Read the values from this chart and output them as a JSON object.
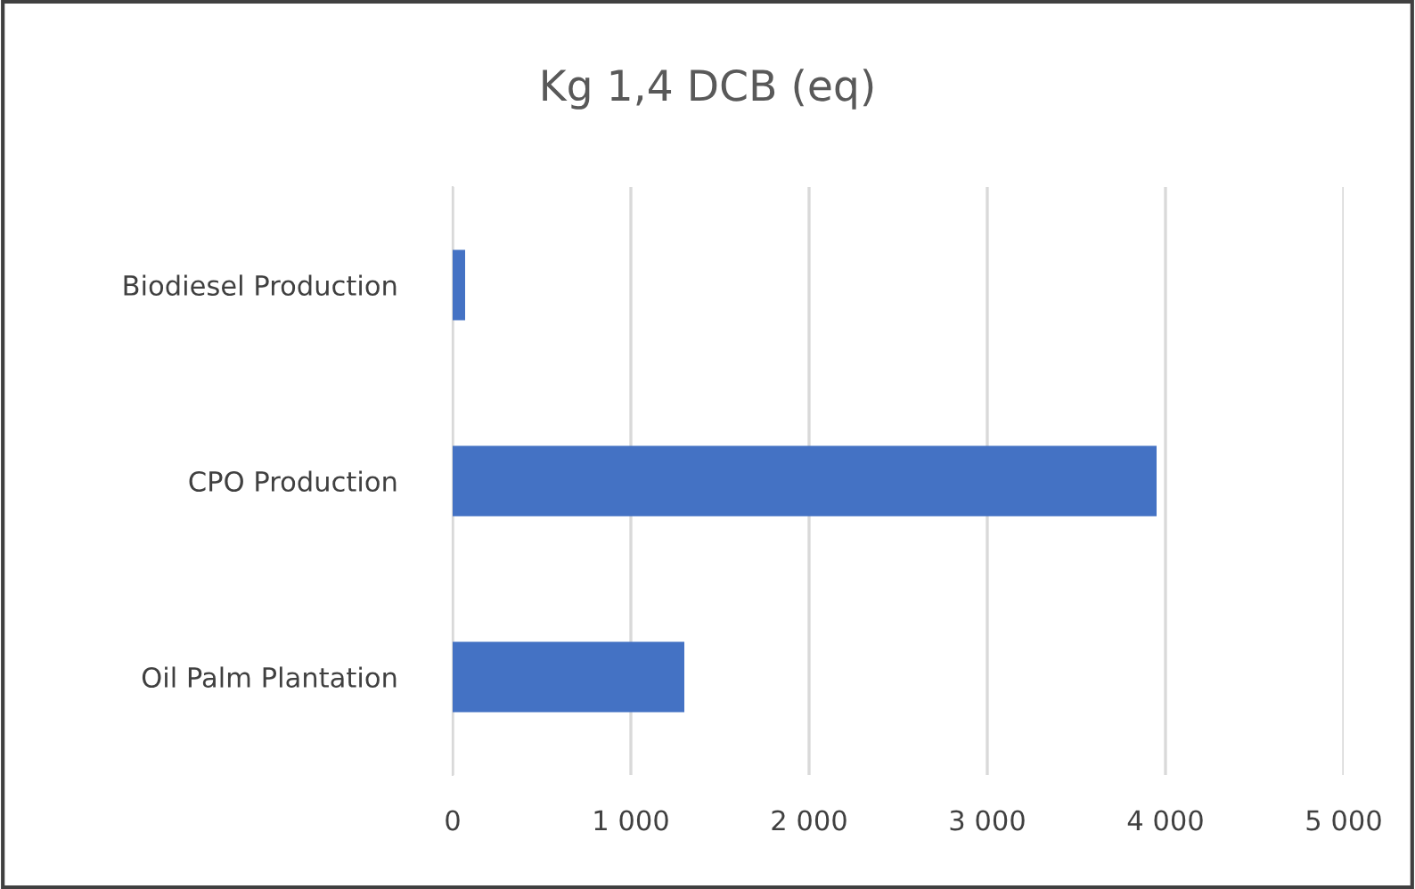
{
  "chart_data": {
    "type": "bar",
    "orientation": "horizontal",
    "title": "Kg 1,4 DCB (eq)",
    "categories": [
      "Biodiesel Production",
      "CPO Production",
      "Oil Palm Plantation"
    ],
    "values": [
      70,
      3950,
      1300
    ],
    "color": "#4472c4",
    "xlim": [
      0,
      5000
    ],
    "xticks": [
      0,
      {
        "value": 1000,
        "label": "1 000"
      },
      {
        "value": 2000,
        "label": "2 000"
      },
      {
        "value": 3000,
        "label": "3 000"
      },
      {
        "value": 4000,
        "label": "4 000"
      },
      {
        "value": 5000,
        "label": "5 000"
      }
    ],
    "grid": "x"
  }
}
